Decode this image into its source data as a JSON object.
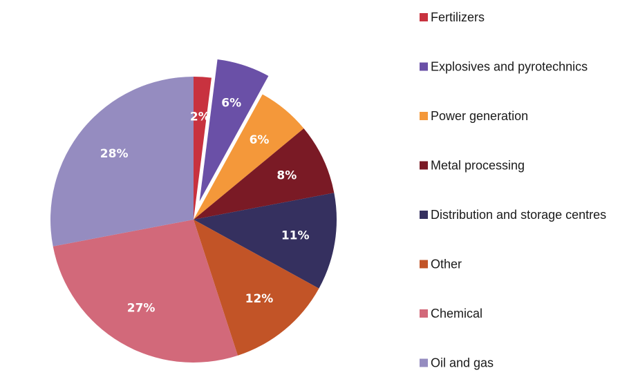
{
  "chart_data": {
    "type": "pie",
    "start_angle": 0,
    "direction": "clockwise",
    "exploded": [
      "Explosives and pyrotechnics"
    ],
    "legend_position": "right",
    "slices": [
      {
        "label": "Fertilizers",
        "value": 2,
        "display": "2%",
        "color": "#c8323f"
      },
      {
        "label": "Explosives and pyrotechnics",
        "value": 6,
        "display": "6%",
        "color": "#6a50a7"
      },
      {
        "label": "Power generation",
        "value": 6,
        "display": "6%",
        "color": "#f4983a"
      },
      {
        "label": "Metal processing",
        "value": 8,
        "display": "8%",
        "color": "#7a1a25"
      },
      {
        "label": "Distribution and storage centres",
        "value": 11,
        "display": "11%",
        "color": "#35305f"
      },
      {
        "label": "Other",
        "value": 12,
        "display": "12%",
        "color": "#c25427"
      },
      {
        "label": "Chemical",
        "value": 27,
        "display": "27%",
        "color": "#d2697a"
      },
      {
        "label": "Oil and gas",
        "value": 28,
        "display": "28%",
        "color": "#958cc0"
      }
    ]
  }
}
